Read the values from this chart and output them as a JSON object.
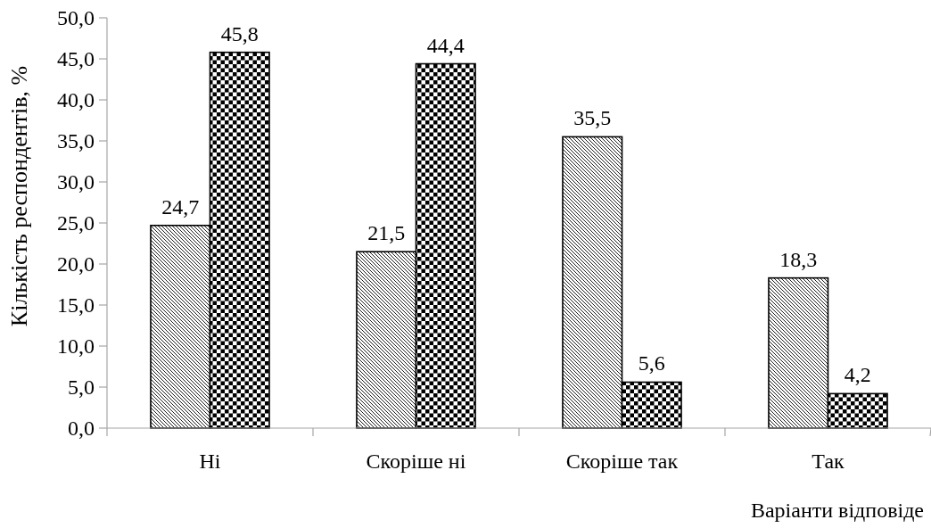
{
  "chart_data": {
    "type": "bar",
    "xlabel": "Варіанти відповіде",
    "ylabel": "Кількість респондентів, %",
    "categories": [
      "Ні",
      "Скоріше ні",
      "Скоріше так",
      "Так"
    ],
    "series": [
      {
        "color": "#000000",
        "values": [
          24.7,
          21.5,
          35.5,
          18.3
        ],
        "value_labels": [
          "24,7",
          "21,5",
          "35,5",
          "18,3"
        ]
      },
      {
        "color": "#000000",
        "values": [
          45.8,
          44.4,
          5.6,
          4.2
        ],
        "value_labels": [
          "45,8",
          "44,4",
          "5,6",
          "4,2"
        ]
      }
    ],
    "ylim": [
      0,
      50
    ],
    "yticks": [
      {
        "value": 0,
        "label": "0,0"
      },
      {
        "value": 5,
        "label": "5,0"
      },
      {
        "value": 10,
        "label": "10,0"
      },
      {
        "value": 15,
        "label": "15,0"
      },
      {
        "value": 20,
        "label": "20,0"
      },
      {
        "value": 25,
        "label": "25,0"
      },
      {
        "value": 30,
        "label": "30,0"
      },
      {
        "value": 35,
        "label": "35,0"
      },
      {
        "value": 40,
        "label": "40,0"
      },
      {
        "value": 45,
        "label": "45,0"
      },
      {
        "value": 50,
        "label": "50,0"
      }
    ]
  }
}
